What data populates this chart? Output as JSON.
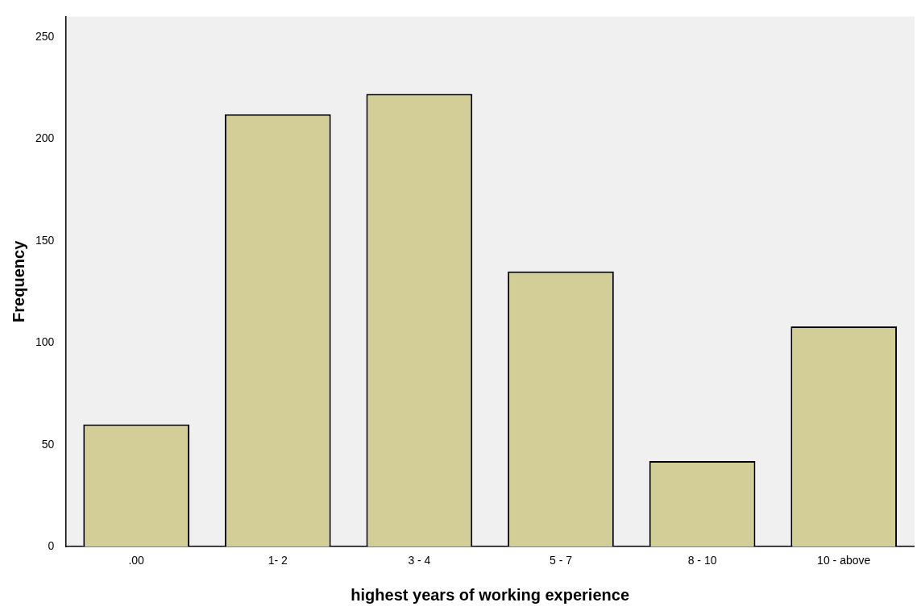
{
  "chart_data": {
    "type": "bar",
    "xlabel": "highest years of working experience",
    "ylabel": "Frequency",
    "categories": [
      ".00",
      "1- 2",
      "3 - 4",
      "5 - 7",
      "8 - 10",
      "10 - above"
    ],
    "values": [
      60,
      212,
      222,
      135,
      42,
      108
    ],
    "color": "#d3ce97",
    "ylim": [
      0,
      260
    ],
    "yticks": [
      0,
      50,
      100,
      150,
      200,
      250
    ],
    "grid": false
  }
}
